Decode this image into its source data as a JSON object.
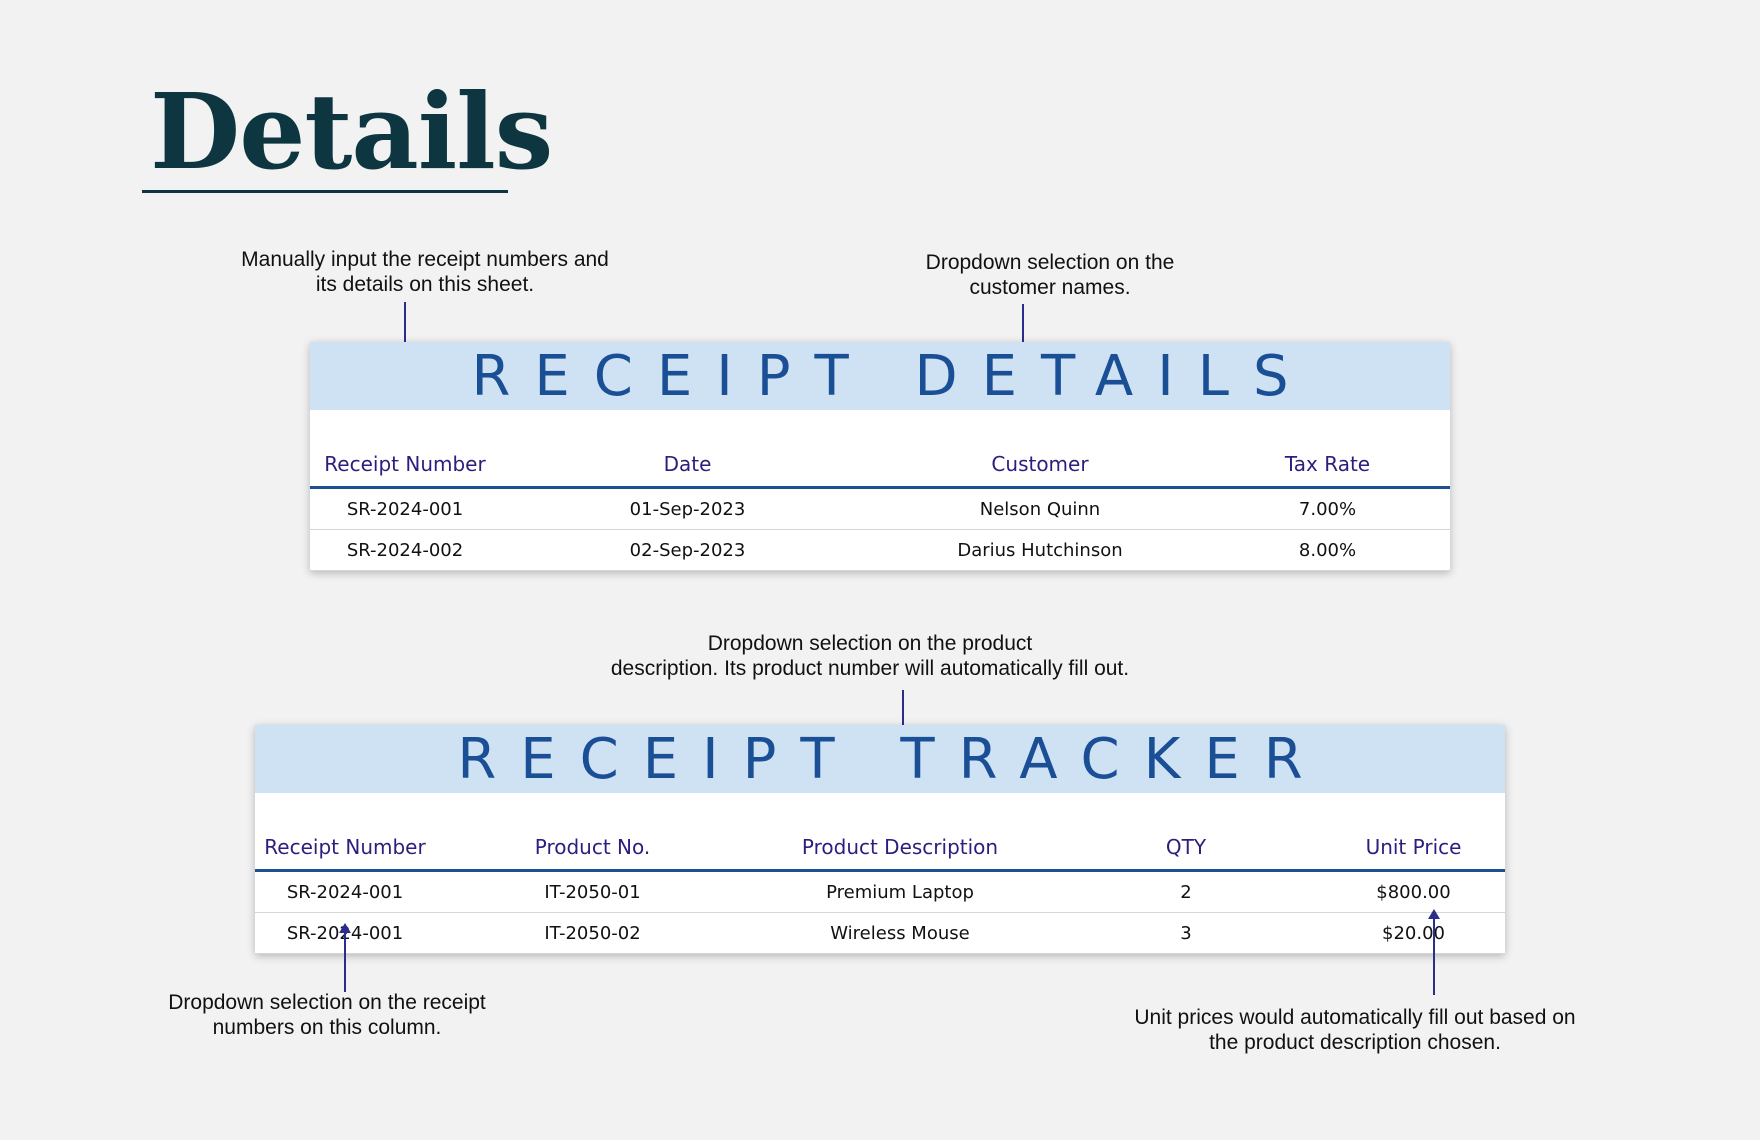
{
  "page": {
    "title": "Details"
  },
  "notes": {
    "receipt_input": [
      "Manually input the receipt numbers and",
      "its details on this sheet."
    ],
    "customer_dropdown": [
      "Dropdown selection on the",
      "customer names."
    ],
    "product_dropdown": [
      "Dropdown selection on the product",
      "description. Its product number will automatically fill out."
    ],
    "receipt_dropdown": [
      "Dropdown selection on the receipt",
      "numbers on this column."
    ],
    "unit_price": [
      "Unit prices would automatically fill out based on",
      "the product description chosen."
    ]
  },
  "receipt_details": {
    "title": "RECEIPT DETAILS",
    "headers": [
      "Receipt Number",
      "Date",
      "Customer",
      "Tax Rate"
    ],
    "rows": [
      [
        "SR-2024-001",
        "01-Sep-2023",
        "Nelson Quinn",
        "7.00%"
      ],
      [
        "SR-2024-002",
        "02-Sep-2023",
        "Darius Hutchinson",
        "8.00%"
      ]
    ]
  },
  "receipt_tracker": {
    "title": "RECEIPT TRACKER",
    "headers": [
      "Receipt Number",
      "Product No.",
      "Product Description",
      "QTY",
      "Unit Price"
    ],
    "rows": [
      [
        "SR-2024-001",
        "IT-2050-01",
        "Premium Laptop",
        "2",
        "$800.00"
      ],
      [
        "SR-2024-001",
        "IT-2050-02",
        "Wireless Mouse",
        "3",
        "$20.00"
      ]
    ]
  },
  "colors": {
    "title": "#0d3641",
    "banner_bg": "#cfe2f4",
    "banner_text": "#1a4f96",
    "header_text": "#2b1e7e",
    "arrow": "#2a2d8c"
  }
}
